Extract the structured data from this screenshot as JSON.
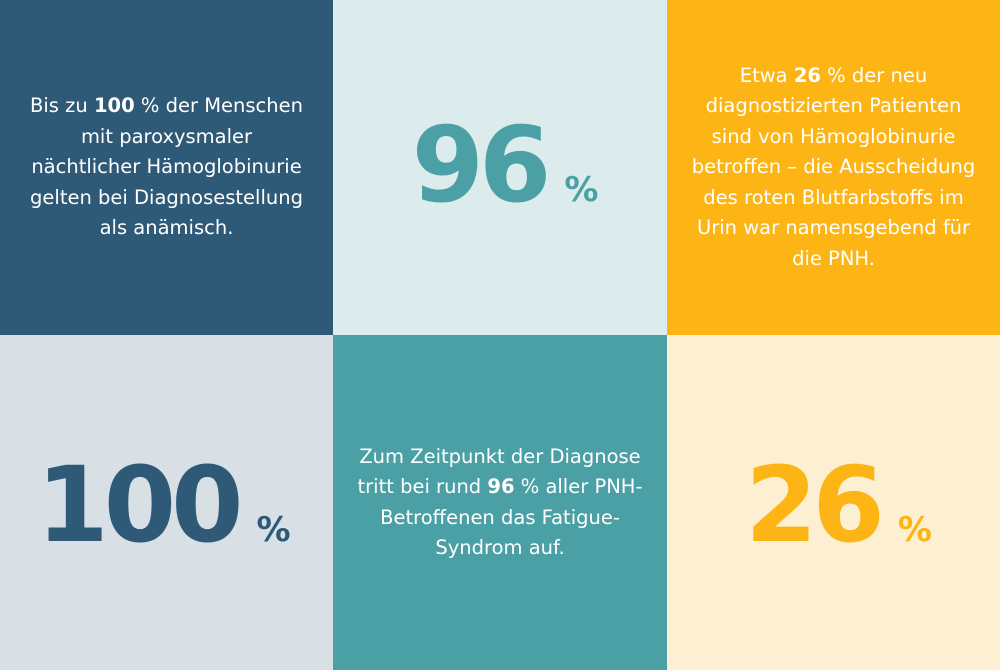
{
  "colors": {
    "navy": "#2e5a78",
    "teal": "#4ba0a6",
    "amber": "#fdb515",
    "pale_teal": "#dcecec",
    "pale_grey": "#d8e0e6",
    "cream": "#fdf0d2",
    "white": "#ffffff"
  },
  "tiles": {
    "anemia_text": {
      "before": "Bis zu ",
      "bold": "100",
      "after": " % der Menschen mit paroxysmaler nächtlicher Hämoglobinurie gelten bei Diagnosestellung als anämisch."
    },
    "stat_96": {
      "value": "96",
      "unit": "%"
    },
    "hemoglobinuria_text": {
      "before": "Etwa ",
      "bold": "26",
      "after": " % der neu diagnostizierten Patienten sind von Hämoglobinurie betroffen – die Ausscheidung des roten Blutfarbstoffs im Urin war namensgebend für die PNH."
    },
    "stat_100": {
      "value": "100",
      "unit": "%"
    },
    "fatigue_text": {
      "before": "Zum Zeitpunkt der Diagnose tritt bei rund ",
      "bold": "96",
      "after": " % aller PNH-Betroffenen das Fatigue-Syndrom auf."
    },
    "stat_26": {
      "value": "26",
      "unit": "%"
    }
  }
}
